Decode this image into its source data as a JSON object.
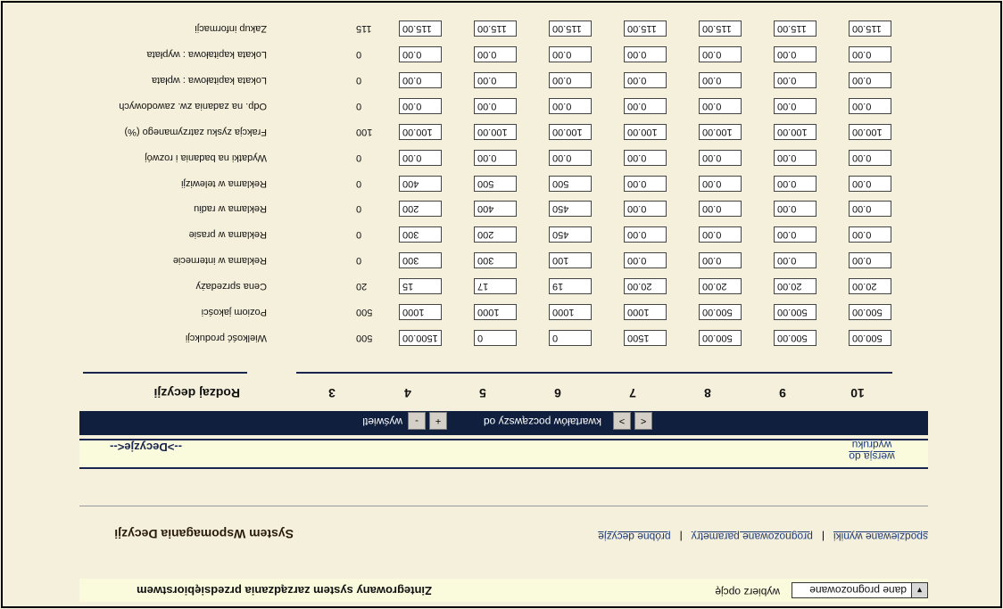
{
  "header": {
    "app_title": "Zintegrowany system zarządzania przedsiębiorstwem",
    "option_label": "wybierz opcję",
    "select_value": "dane prognozowane"
  },
  "system": {
    "title": "System Wspomagania Decyzji",
    "nav": [
      "próbne decyzje",
      "prognozowane parametry",
      "spodziewane wyniki"
    ]
  },
  "decisions": {
    "title": "-->Decyzje<--",
    "print_link": "wersja do wydruku"
  },
  "quarter_nav": {
    "prev": "<",
    "next": ">",
    "text": "kwartałów  począwszy od",
    "plus": "+",
    "minus": "-",
    "show": "wyświetl"
  },
  "table": {
    "header_label": "Rodzaj decyzji",
    "columns": [
      "3",
      "4",
      "5",
      "6",
      "7",
      "8",
      "9",
      "10"
    ],
    "rows": [
      {
        "label": "Wielkość produkcji",
        "current": "500",
        "values": [
          "1500.00",
          "0",
          "0",
          "1500",
          "500.00",
          "500.00",
          "500.00"
        ]
      },
      {
        "label": "Poziom jakości",
        "current": "500",
        "values": [
          "1000",
          "1000",
          "1000",
          "1000",
          "500.00",
          "500.00",
          "500.00"
        ]
      },
      {
        "label": "Cena sprzedaży",
        "current": "20",
        "values": [
          "15",
          "17",
          "19",
          "20.00",
          "20.00",
          "20.00",
          "20.00"
        ]
      },
      {
        "label": "Reklama w internecie",
        "current": "0",
        "values": [
          "300",
          "300",
          "100",
          "0.00",
          "0.00",
          "0.00",
          "0.00"
        ]
      },
      {
        "label": "Reklama w prasie",
        "current": "0",
        "values": [
          "300",
          "200",
          "450",
          "0.00",
          "0.00",
          "0.00",
          "0.00"
        ]
      },
      {
        "label": "Reklama w radiu",
        "current": "0",
        "values": [
          "200",
          "400",
          "450",
          "0.00",
          "0.00",
          "0.00",
          "0.00"
        ]
      },
      {
        "label": "Reklama w telewizji",
        "current": "0",
        "values": [
          "400",
          "500",
          "500",
          "0.00",
          "0.00",
          "0.00",
          "0.00"
        ]
      },
      {
        "label": "Wydatki na badania i rozwój",
        "current": "0",
        "values": [
          "0.00",
          "0.00",
          "0.00",
          "0.00",
          "0.00",
          "0.00",
          "0.00"
        ]
      },
      {
        "label": "Frakcja zysku zatrzymanego (%)",
        "current": "100",
        "values": [
          "100.00",
          "100.00",
          "100.00",
          "100.00",
          "100.00",
          "100.00",
          "100.00"
        ]
      },
      {
        "label": "Odp. na zadania zw. zawodowych",
        "current": "0",
        "values": [
          "0.00",
          "0.00",
          "0.00",
          "0.00",
          "0.00",
          "0.00",
          "0.00"
        ]
      },
      {
        "label": "Lokata kapitałowa : wpłata",
        "current": "0",
        "values": [
          "0.00",
          "0.00",
          "0.00",
          "0.00",
          "0.00",
          "0.00",
          "0.00"
        ]
      },
      {
        "label": "Lokata kapitałowa : wypłata",
        "current": "0",
        "values": [
          "0.00",
          "0.00",
          "0.00",
          "0.00",
          "0.00",
          "0.00",
          "0.00"
        ]
      },
      {
        "label": "Zakup informacji",
        "current": "115",
        "values": [
          "115.00",
          "115.00",
          "115.00",
          "115.00",
          "115.00",
          "115.00",
          "115.00"
        ]
      }
    ]
  }
}
